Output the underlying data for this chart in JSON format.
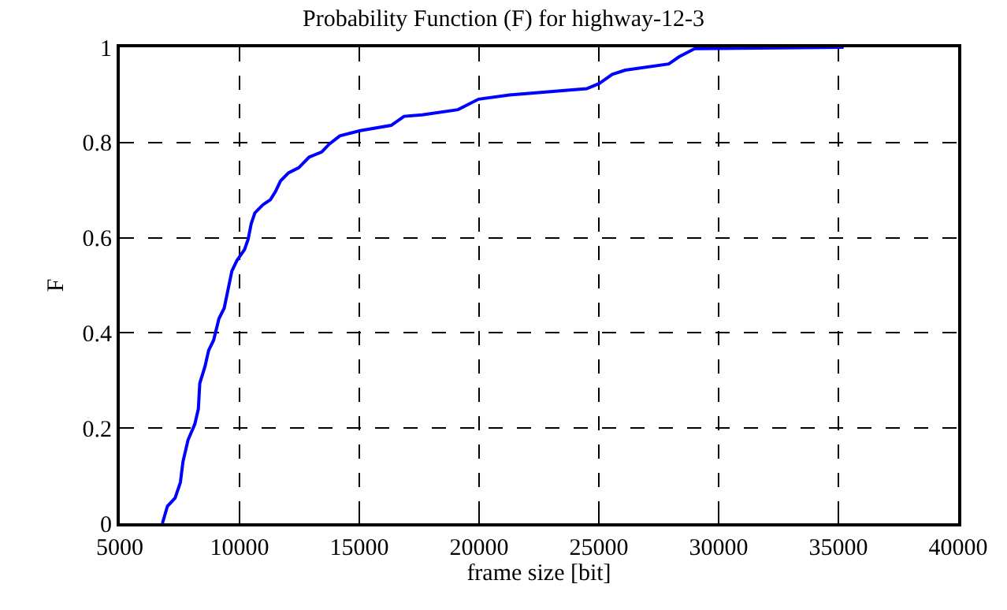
{
  "chart_data": {
    "type": "line",
    "title": "Probability Function (F) for highway-12-3",
    "xlabel": "frame size [bit]",
    "ylabel": "F",
    "xlim": [
      5000,
      40000
    ],
    "xticks": [
      5000,
      10000,
      15000,
      20000,
      25000,
      30000,
      35000,
      40000
    ],
    "ylim": [
      0,
      1
    ],
    "yticks": [
      0,
      0.2,
      0.4,
      0.6,
      0.8,
      1
    ],
    "grid": true,
    "legend": false,
    "marker": "none",
    "line_style": "solid",
    "series": [
      {
        "color": "#0000ff",
        "x": [
          6780,
          6990,
          7310,
          7530,
          7640,
          7850,
          8130,
          8280,
          8340,
          8560,
          8710,
          8920,
          9140,
          9360,
          9500,
          9680,
          9890,
          10210,
          10360,
          10490,
          10640,
          10970,
          11290,
          11500,
          11710,
          12040,
          12470,
          12900,
          13430,
          13750,
          14190,
          15040,
          16330,
          16870,
          17620,
          19120,
          19980,
          21270,
          24490,
          25020,
          25560,
          26100,
          27920,
          28350,
          29000,
          35220
        ],
        "values": [
          0,
          0.036,
          0.053,
          0.086,
          0.13,
          0.175,
          0.208,
          0.24,
          0.294,
          0.33,
          0.363,
          0.385,
          0.43,
          0.452,
          0.486,
          0.53,
          0.552,
          0.575,
          0.597,
          0.63,
          0.652,
          0.669,
          0.68,
          0.697,
          0.719,
          0.736,
          0.747,
          0.769,
          0.78,
          0.797,
          0.814,
          0.825,
          0.836,
          0.855,
          0.858,
          0.869,
          0.891,
          0.9,
          0.913,
          0.924,
          0.943,
          0.952,
          0.965,
          0.98,
          0.997,
          1.0
        ]
      }
    ]
  }
}
